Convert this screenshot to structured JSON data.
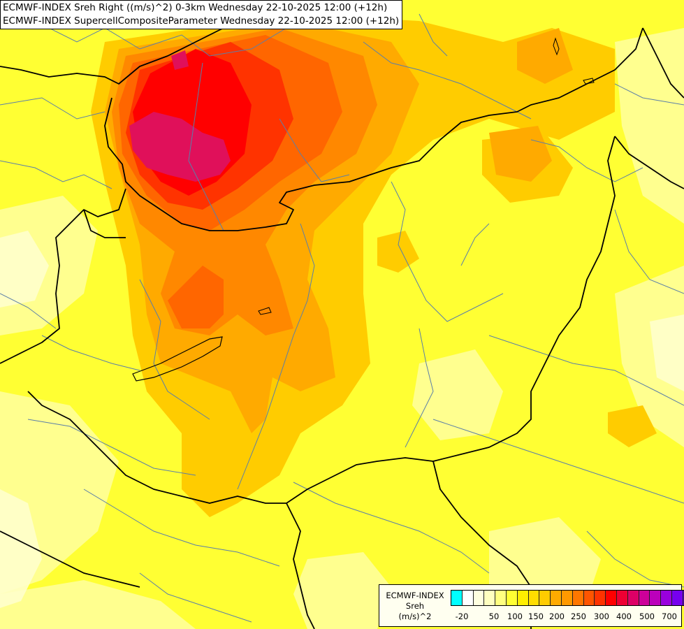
{
  "title": {
    "line1": "ECMWF-INDEX Sreh Right ((m/s)^2) 0-3km Wednesday 22-10-2025 12:00 (+12h)",
    "line2": "ECMWF-INDEX SupercellCompositeParameter Wednesday 22-10-2025 12:00 (+12h)"
  },
  "legend": {
    "title1": "ECMWF-INDEX",
    "title2": "Sreh",
    "title3": "(m/s)^2",
    "colors": [
      "#00ffff",
      "#ffffff",
      "#ffffe0",
      "#ffffc0",
      "#ffff80",
      "#ffff33",
      "#ffee00",
      "#ffdd00",
      "#ffcc00",
      "#ffaa00",
      "#ff9900",
      "#ff7700",
      "#ff5500",
      "#ff3300",
      "#ff0000",
      "#ee0033",
      "#dd0066",
      "#cc0099",
      "#bb00bb",
      "#9900dd",
      "#7700ee",
      "#5500cc",
      "#330099",
      "#000080"
    ],
    "ticks": [
      "-20",
      "50",
      "100",
      "150",
      "200",
      "250",
      "300",
      "400",
      "500",
      "700"
    ]
  },
  "colors": {
    "background_field": "#ffff33",
    "low": "#ffffa0",
    "moderate": "#ffcc00",
    "high": "#ff9900",
    "very_high": "#ff4400",
    "extreme": "#ff0000",
    "peak": "#e0105a",
    "borders": "#000000",
    "rivers": "#5b7fa8"
  }
}
